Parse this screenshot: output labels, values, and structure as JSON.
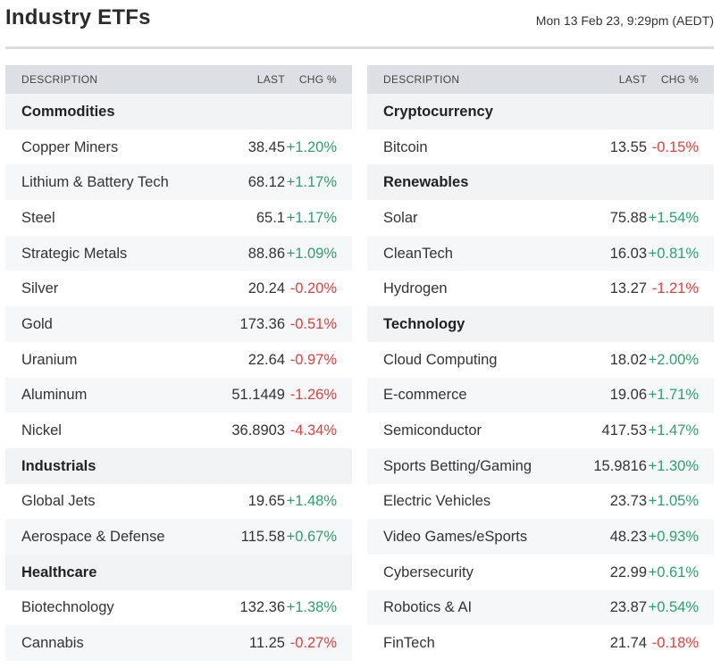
{
  "header": {
    "title": "Industry ETFs",
    "timestamp": "Mon 13 Feb 23, 9:29pm (AEDT)"
  },
  "columns": {
    "description": "DESCRIPTION",
    "last": "LAST",
    "change": "CHG %"
  },
  "colors": {
    "positive": "#2e9e6e",
    "negative": "#e0403e",
    "header_bg": "#dce0e5",
    "group_bg": "#f1f3f5"
  },
  "left_table": [
    {
      "group": "Commodities",
      "rows": [
        {
          "name": "Copper Miners",
          "last": "38.45",
          "chg": "+1.20%"
        },
        {
          "name": "Lithium & Battery Tech",
          "last": "68.12",
          "chg": "+1.17%"
        },
        {
          "name": "Steel",
          "last": "65.1",
          "chg": "+1.17%"
        },
        {
          "name": "Strategic Metals",
          "last": "88.86",
          "chg": "+1.09%"
        },
        {
          "name": "Silver",
          "last": "20.24",
          "chg": "-0.20%"
        },
        {
          "name": "Gold",
          "last": "173.36",
          "chg": "-0.51%"
        },
        {
          "name": "Uranium",
          "last": "22.64",
          "chg": "-0.97%"
        },
        {
          "name": "Aluminum",
          "last": "51.1449",
          "chg": "-1.26%"
        },
        {
          "name": "Nickel",
          "last": "36.8903",
          "chg": "-4.34%"
        }
      ]
    },
    {
      "group": "Industrials",
      "rows": [
        {
          "name": "Global Jets",
          "last": "19.65",
          "chg": "+1.48%"
        },
        {
          "name": "Aerospace & Defense",
          "last": "115.58",
          "chg": "+0.67%"
        }
      ]
    },
    {
      "group": "Healthcare",
      "rows": [
        {
          "name": "Biotechnology",
          "last": "132.36",
          "chg": "+1.38%"
        },
        {
          "name": "Cannabis",
          "last": "11.25",
          "chg": "-0.27%"
        }
      ]
    }
  ],
  "right_table": [
    {
      "group": "Cryptocurrency",
      "rows": [
        {
          "name": "Bitcoin",
          "last": "13.55",
          "chg": "-0.15%"
        }
      ]
    },
    {
      "group": "Renewables",
      "rows": [
        {
          "name": "Solar",
          "last": "75.88",
          "chg": "+1.54%"
        },
        {
          "name": "CleanTech",
          "last": "16.03",
          "chg": "+0.81%"
        },
        {
          "name": "Hydrogen",
          "last": "13.27",
          "chg": "-1.21%"
        }
      ]
    },
    {
      "group": "Technology",
      "rows": [
        {
          "name": "Cloud Computing",
          "last": "18.02",
          "chg": "+2.00%"
        },
        {
          "name": "E-commerce",
          "last": "19.06",
          "chg": "+1.71%"
        },
        {
          "name": "Semiconductor",
          "last": "417.53",
          "chg": "+1.47%"
        },
        {
          "name": "Sports Betting/Gaming",
          "last": "15.9816",
          "chg": "+1.30%"
        },
        {
          "name": "Electric Vehicles",
          "last": "23.73",
          "chg": "+1.05%"
        },
        {
          "name": "Video Games/eSports",
          "last": "48.23",
          "chg": "+0.93%"
        },
        {
          "name": "Cybersecurity",
          "last": "22.99",
          "chg": "+0.61%"
        },
        {
          "name": "Robotics & AI",
          "last": "23.87",
          "chg": "+0.54%"
        },
        {
          "name": "FinTech",
          "last": "21.74",
          "chg": "-0.18%"
        }
      ]
    }
  ]
}
